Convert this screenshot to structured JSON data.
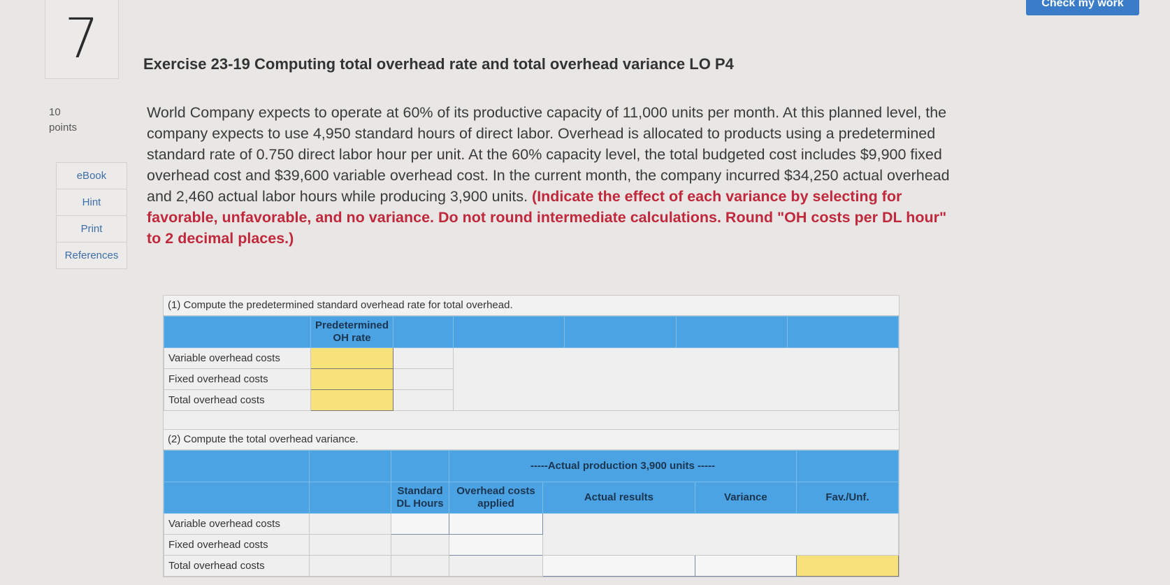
{
  "question_number": "7",
  "check_button": "Check my work",
  "title": "Exercise 23-19 Computing total overhead rate and total overhead variance LO P4",
  "points": {
    "value": "10",
    "label": "points"
  },
  "side_links": [
    "eBook",
    "Hint",
    "Print",
    "References"
  ],
  "problem": {
    "text": "World Company expects to operate at 60% of its productive capacity of 11,000 units per month. At this planned level, the company expects to use 4,950 standard hours of direct labor. Overhead is allocated to products using a predetermined standard rate of 0.750 direct labor hour per unit. At the 60% capacity level, the total budgeted cost includes $9,900 fixed overhead cost and $39,600 variable overhead cost. In the current month, the company incurred $34,250 actual overhead and 2,460 actual labor hours while producing 3,900 units.",
    "instruction": "(Indicate the effect of each variance by selecting for favorable, unfavorable, and no variance. Do not round intermediate calculations. Round \"OH costs per DL hour\" to 2 decimal places.)"
  },
  "part1": {
    "caption": "(1) Compute the predetermined standard overhead rate for total overhead.",
    "header": "Predetermined OH rate",
    "rows": [
      "Variable overhead costs",
      "Fixed overhead costs",
      "Total overhead costs"
    ]
  },
  "part2": {
    "caption": "(2) Compute the total overhead variance.",
    "group_header": "-----Actual production 3,900 units -----",
    "headers": [
      "Standard DL Hours",
      "Overhead costs applied",
      "Actual results",
      "Variance",
      "Fav./Unf."
    ],
    "rows": [
      "Variable overhead costs",
      "Fixed overhead costs",
      "Total overhead costs"
    ]
  },
  "colors": {
    "header_blue": "#4ca3e3",
    "input_yellow": "#f7e27a",
    "instruction_red": "#c0283c"
  }
}
